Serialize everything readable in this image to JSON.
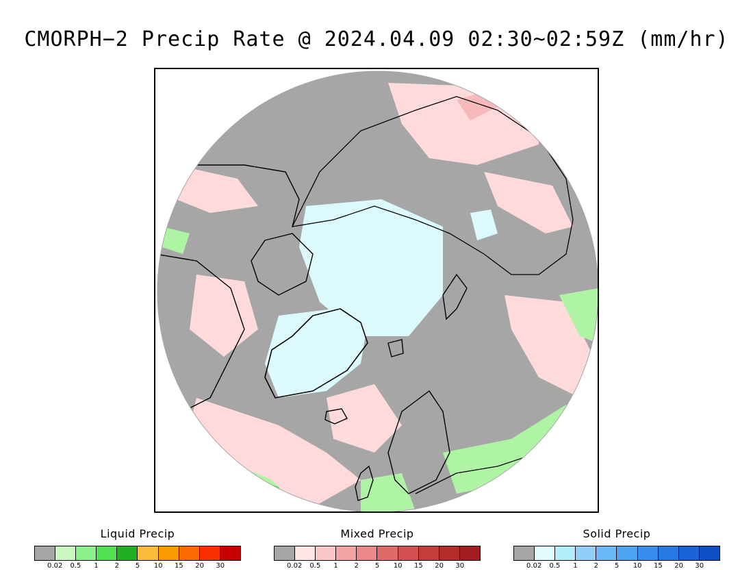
{
  "title": "CMORPH−2 Precip Rate @ 2024.04.09 02:30~02:59Z (mm/hr)",
  "map": {
    "projection": "north-polar-stereographic",
    "colors": {
      "no_precip": "#a6a6a6",
      "mixed_light": "#ffdada",
      "mixed_med": "#f7b9b9",
      "snow_light": "#dcfafe",
      "rain_light": "#aef4a4",
      "rain_med": "#64de64",
      "coast": "#000000"
    }
  },
  "legends": [
    {
      "title": "Liquid Precip",
      "swatches": [
        "#a6a6a6",
        "#c8f7c0",
        "#8ef08a",
        "#50e050",
        "#20b020",
        "#fbbc3c",
        "#fb9a00",
        "#fb6a00",
        "#fb3000",
        "#c80000"
      ],
      "ticks": [
        "0.02",
        "0.5",
        "1",
        "2",
        "5",
        "10",
        "15",
        "20",
        "30"
      ]
    },
    {
      "title": "Mixed Precip",
      "swatches": [
        "#a6a6a6",
        "#ffe4e4",
        "#fbc6c6",
        "#f4a4a4",
        "#ec8888",
        "#e06a6a",
        "#d45050",
        "#c43c3c",
        "#b42c2c",
        "#a01e1e"
      ],
      "ticks": [
        "0.02",
        "0.5",
        "1",
        "2",
        "5",
        "10",
        "15",
        "20",
        "30"
      ]
    },
    {
      "title": "Solid Precip",
      "swatches": [
        "#a6a6a6",
        "#e0fcfe",
        "#b0ecfa",
        "#90d0f8",
        "#6ab8f6",
        "#4ea2f2",
        "#3a8cec",
        "#2878e4",
        "#1a62d8",
        "#0e50c8"
      ],
      "ticks": [
        "0.02",
        "0.5",
        "1",
        "2",
        "5",
        "10",
        "15",
        "20",
        "30"
      ]
    }
  ]
}
